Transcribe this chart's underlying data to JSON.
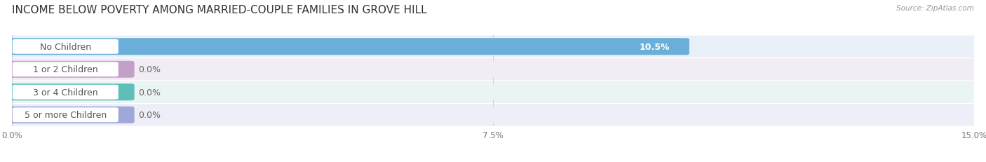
{
  "title": "INCOME BELOW POVERTY AMONG MARRIED-COUPLE FAMILIES IN GROVE HILL",
  "source": "Source: ZipAtlas.com",
  "categories": [
    "No Children",
    "1 or 2 Children",
    "3 or 4 Children",
    "5 or more Children"
  ],
  "values": [
    10.5,
    0.0,
    0.0,
    0.0
  ],
  "bar_colors": [
    "#6aafd9",
    "#c3a0c8",
    "#5dbfb8",
    "#9fa8d8"
  ],
  "row_bg_colors": [
    "#eaf0f8",
    "#f2edf5",
    "#eaf4f3",
    "#edeef8"
  ],
  "label_text_colors": [
    "#555555",
    "#555555",
    "#555555",
    "#555555"
  ],
  "xlim": [
    0,
    15.0
  ],
  "xticks": [
    0.0,
    7.5,
    15.0
  ],
  "xtick_labels": [
    "0.0%",
    "7.5%",
    "15.0%"
  ],
  "title_fontsize": 11,
  "label_fontsize": 9,
  "value_fontsize": 9,
  "bar_height": 0.62,
  "background_color": "#ffffff",
  "row_sep_color": "#d8d8e8"
}
